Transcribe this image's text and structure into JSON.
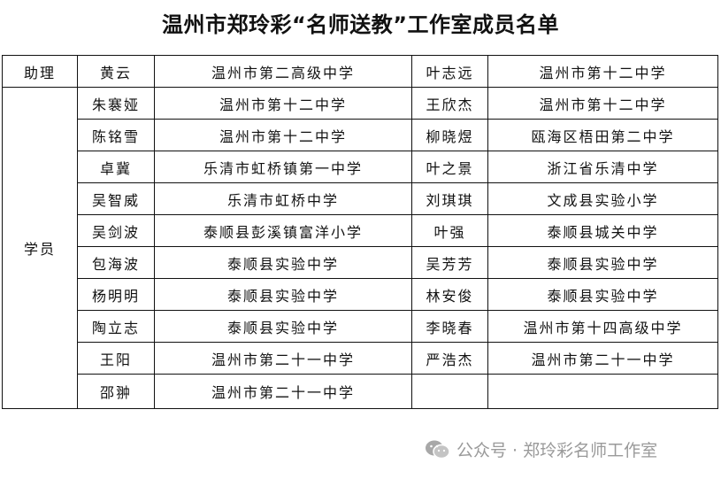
{
  "title": "温州市郑玲彩“名师送教”工作室成员名单",
  "assistant": {
    "role": "助理",
    "name1": "黄云",
    "school1": "温州市第二高级中学",
    "name2": "叶志远",
    "school2": "温州市第十二中学"
  },
  "students_label": "学员",
  "rows": [
    {
      "name1": "朱褰娅",
      "school1": "温州市第十二中学",
      "name2": "王欣杰",
      "school2": "温州市第十二中学"
    },
    {
      "name1": "陈铭雪",
      "school1": "温州市第十二中学",
      "name2": "柳晓煜",
      "school2": "瓯海区梧田第二中学"
    },
    {
      "name1": "卓冀",
      "school1": "乐清市虹桥镇第一中学",
      "name2": "叶之景",
      "school2": "浙江省乐清中学"
    },
    {
      "name1": "吴智威",
      "school1": "乐清市虹桥中学",
      "name2": "刘琪琪",
      "school2": "文成县实验小学"
    },
    {
      "name1": "吴剑波",
      "school1": "泰顺县彭溪镇富洋小学",
      "name2": "叶强",
      "school2": "泰顺县城关中学"
    },
    {
      "name1": "包海波",
      "school1": "泰顺县实验中学",
      "name2": "吴芳芳",
      "school2": "泰顺县实验中学"
    },
    {
      "name1": "杨明明",
      "school1": "泰顺县实验中学",
      "name2": "林安俊",
      "school2": "泰顺县实验中学"
    },
    {
      "name1": "陶立志",
      "school1": "泰顺县实验中学",
      "name2": "李晓春",
      "school2": "温州市第十四高级中学"
    },
    {
      "name1": "王阳",
      "school1": "温州市第二十一中学",
      "name2": "严浩杰",
      "school2": "温州市第二十一中学"
    },
    {
      "name1": "邵翀",
      "school1": "温州市第二十一中学",
      "name2": "",
      "school2": ""
    }
  ],
  "watermark": {
    "icon": "wechat-icon",
    "text": "公众号 · 郑玲彩名师工作室"
  }
}
